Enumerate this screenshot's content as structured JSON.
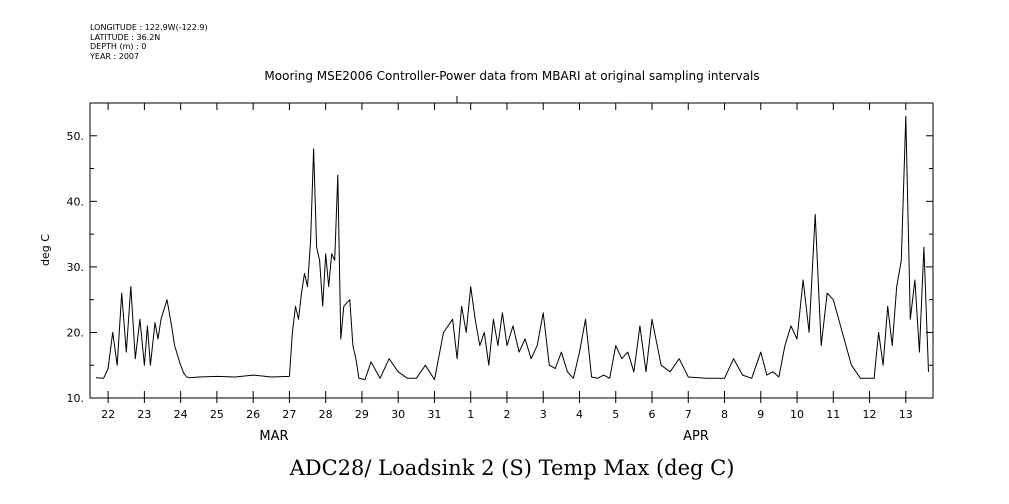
{
  "metadata": {
    "longitude": "LONGITUDE : 122.9W(-122.9)",
    "latitude": "LATITUDE : 36.2N",
    "depth": "DEPTH (m) : 0",
    "year": "YEAR : 2007"
  },
  "chart_data": {
    "type": "line",
    "title": "Mooring MSE2006 Controller-Power data from MBARI at original sampling intervals",
    "xlabel": "ADC28/ Loadsink 2 (S) Temp Max (deg C)",
    "ylabel": "deg C",
    "xlim": [
      "2007-03-21T12:00",
      "2007-04-13T18:00"
    ],
    "ylim": [
      10,
      55
    ],
    "yticks": [
      10,
      20,
      30,
      40,
      50
    ],
    "ytick_labels": [
      "10.",
      "20.",
      "30.",
      "40.",
      "50."
    ],
    "day_labels": [
      "22",
      "23",
      "24",
      "25",
      "26",
      "27",
      "28",
      "29",
      "30",
      "31",
      "1",
      "2",
      "3",
      "4",
      "5",
      "6",
      "7",
      "8",
      "9",
      "10",
      "11",
      "12",
      "13"
    ],
    "month_labels": [
      "MAR",
      "APR"
    ],
    "grid": false,
    "series": [
      {
        "color": "#000000",
        "x": [
          "2007-03-21T16:00",
          "2007-03-21T21:00",
          "2007-03-22T00:00",
          "2007-03-22T03:00",
          "2007-03-22T06:00",
          "2007-03-22T09:00",
          "2007-03-22T12:00",
          "2007-03-22T15:00",
          "2007-03-22T18:00",
          "2007-03-22T21:00",
          "2007-03-23T00:00",
          "2007-03-23T02:00",
          "2007-03-23T04:00",
          "2007-03-23T07:00",
          "2007-03-23T09:00",
          "2007-03-23T11:00",
          "2007-03-23T13:00",
          "2007-03-23T15:00",
          "2007-03-23T18:00",
          "2007-03-23T20:00",
          "2007-03-23T22:00",
          "2007-03-24T00:00",
          "2007-03-24T02:00",
          "2007-03-24T04:00",
          "2007-03-24T06:00",
          "2007-03-24T12:00",
          "2007-03-25T00:00",
          "2007-03-25T12:00",
          "2007-03-26T00:00",
          "2007-03-26T12:00",
          "2007-03-27T00:00",
          "2007-03-27T02:00",
          "2007-03-27T04:00",
          "2007-03-27T06:00",
          "2007-03-27T08:00",
          "2007-03-27T10:00",
          "2007-03-27T12:00",
          "2007-03-27T14:00",
          "2007-03-27T16:00",
          "2007-03-27T18:00",
          "2007-03-27T20:00",
          "2007-03-27T22:00",
          "2007-03-28T00:00",
          "2007-03-28T02:00",
          "2007-03-28T04:00",
          "2007-03-28T06:00",
          "2007-03-28T08:00",
          "2007-03-28T10:00",
          "2007-03-28T12:00",
          "2007-03-28T14:00",
          "2007-03-28T16:00",
          "2007-03-28T18:00",
          "2007-03-28T20:00",
          "2007-03-28T22:00",
          "2007-03-29T02:00",
          "2007-03-29T06:00",
          "2007-03-29T12:00",
          "2007-03-29T18:00",
          "2007-03-30T00:00",
          "2007-03-30T06:00",
          "2007-03-30T12:00",
          "2007-03-30T18:00",
          "2007-03-31T00:00",
          "2007-03-31T06:00",
          "2007-03-31T12:00",
          "2007-03-31T15:00",
          "2007-03-31T18:00",
          "2007-03-31T21:00",
          "2007-04-01T00:00",
          "2007-04-01T03:00",
          "2007-04-01T06:00",
          "2007-04-01T09:00",
          "2007-04-01T12:00",
          "2007-04-01T15:00",
          "2007-04-01T18:00",
          "2007-04-01T21:00",
          "2007-04-02T00:00",
          "2007-04-02T04:00",
          "2007-04-02T08:00",
          "2007-04-02T12:00",
          "2007-04-02T16:00",
          "2007-04-02T20:00",
          "2007-04-03T00:00",
          "2007-04-03T04:00",
          "2007-04-03T08:00",
          "2007-04-03T12:00",
          "2007-04-03T16:00",
          "2007-04-03T20:00",
          "2007-04-04T00:00",
          "2007-04-04T04:00",
          "2007-04-04T08:00",
          "2007-04-04T12:00",
          "2007-04-04T16:00",
          "2007-04-04T20:00",
          "2007-04-05T00:00",
          "2007-04-05T04:00",
          "2007-04-05T08:00",
          "2007-04-05T12:00",
          "2007-04-05T16:00",
          "2007-04-05T20:00",
          "2007-04-06T00:00",
          "2007-04-06T06:00",
          "2007-04-06T12:00",
          "2007-04-06T18:00",
          "2007-04-07T00:00",
          "2007-04-07T12:00",
          "2007-04-08T00:00",
          "2007-04-08T06:00",
          "2007-04-08T12:00",
          "2007-04-08T18:00",
          "2007-04-09T00:00",
          "2007-04-09T04:00",
          "2007-04-09T08:00",
          "2007-04-09T12:00",
          "2007-04-09T16:00",
          "2007-04-09T20:00",
          "2007-04-10T00:00",
          "2007-04-10T04:00",
          "2007-04-10T08:00",
          "2007-04-10T12:00",
          "2007-04-10T16:00",
          "2007-04-10T20:00",
          "2007-04-11T00:00",
          "2007-04-11T12:00",
          "2007-04-11T18:00",
          "2007-04-12T00:00",
          "2007-04-12T03:00",
          "2007-04-12T06:00",
          "2007-04-12T09:00",
          "2007-04-12T12:00",
          "2007-04-12T15:00",
          "2007-04-12T18:00",
          "2007-04-12T21:00",
          "2007-04-13T00:00",
          "2007-04-13T03:00",
          "2007-04-13T06:00",
          "2007-04-13T09:00",
          "2007-04-13T12:00",
          "2007-04-13T15:00"
        ],
        "y": [
          13.1,
          13.0,
          14.5,
          20.0,
          15.0,
          26.0,
          17.0,
          27.0,
          16.0,
          22.0,
          15.0,
          21.0,
          15.0,
          21.5,
          19.0,
          22.0,
          23.5,
          25.0,
          21.0,
          18.0,
          16.5,
          15.0,
          13.8,
          13.2,
          13.1,
          13.2,
          13.3,
          13.2,
          13.5,
          13.2,
          13.3,
          20.0,
          24.0,
          22.0,
          26.0,
          29.0,
          27.0,
          34.0,
          48.0,
          33.0,
          31.0,
          24.0,
          32.0,
          27.0,
          32.0,
          31.0,
          44.0,
          19.0,
          24.0,
          24.5,
          25.0,
          18.0,
          16.0,
          13.0,
          12.8,
          15.5,
          13.0,
          16.0,
          14.0,
          13.0,
          13.0,
          15.0,
          12.8,
          20.0,
          22.0,
          16.0,
          24.0,
          20.0,
          27.0,
          22.0,
          18.0,
          20.0,
          15.0,
          22.0,
          18.0,
          23.0,
          18.0,
          21.0,
          17.0,
          19.0,
          16.0,
          18.0,
          23.0,
          15.0,
          14.5,
          17.0,
          14.0,
          13.0,
          17.0,
          22.0,
          13.2,
          13.0,
          13.5,
          13.0,
          18.0,
          16.0,
          17.0,
          14.0,
          21.0,
          14.0,
          22.0,
          15.0,
          14.0,
          16.0,
          13.2,
          13.0,
          13.0,
          16.0,
          13.5,
          13.0,
          17.0,
          13.5,
          14.0,
          13.2,
          18.0,
          21.0,
          19.0,
          28.0,
          20.0,
          38.0,
          18.0,
          26.0,
          25.0,
          15.0,
          13.0,
          13.0,
          13.0,
          20.0,
          15.0,
          24.0,
          18.0,
          27.0,
          31.0,
          53.0,
          22.0,
          28.0,
          17.0,
          33.0,
          14.0
        ]
      }
    ]
  }
}
